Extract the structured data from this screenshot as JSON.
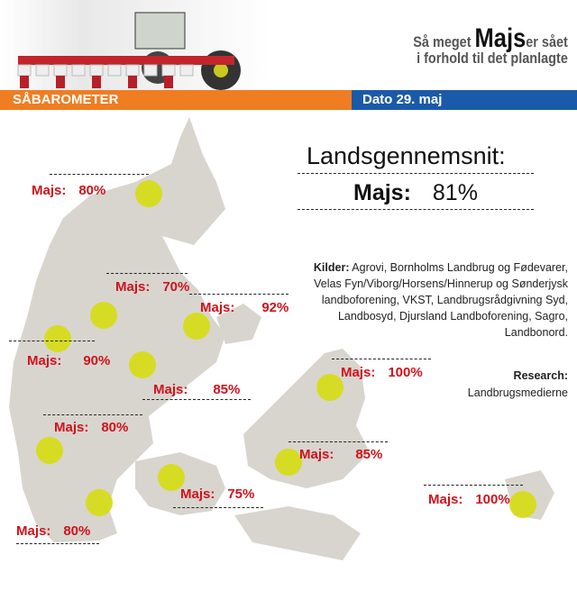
{
  "header": {
    "tagline_pre": "Så meget",
    "tagline_crop": "Majs",
    "tagline_post": "er sået",
    "tagline_line2": "i forhold til det planlagte",
    "section": "SÅBAROMETER",
    "date": "Dato 29. maj"
  },
  "average": {
    "title": "Landsgennemsnit:",
    "crop": "Majs:",
    "value": "81%"
  },
  "sources": {
    "label": "Kilder:",
    "text": "Agrovi, Bornholms Landbrug og Fødevarer, Velas Fyn/Viborg/Horsens/Hinnerup og Sønderjysk landboforening, VKST, Landbrugsrådgivning Syd, Landbosyd, Djursland Landboforening, Sagro, Landbonord."
  },
  "research": {
    "label": "Research:",
    "text": "Landbrugsmedierne"
  },
  "colors": {
    "orange": "#ef7d22",
    "blue": "#1b5aa8",
    "label_red": "#d1121b",
    "marker": "#d6dc1a",
    "land": "#d8d5cf"
  },
  "regions": [
    {
      "crop": "Majs:",
      "value": "80%"
    },
    {
      "crop": "Majs:",
      "value": "70%"
    },
    {
      "crop": "Majs:",
      "value": "92%"
    },
    {
      "crop": "Majs:",
      "value": "90%"
    },
    {
      "crop": "Majs:",
      "value": "85%"
    },
    {
      "crop": "Majs:",
      "value": "100%"
    },
    {
      "crop": "Majs:",
      "value": "80%"
    },
    {
      "crop": "Majs:",
      "value": "85%"
    },
    {
      "crop": "Majs:",
      "value": "75%"
    },
    {
      "crop": "Majs:",
      "value": "100%"
    },
    {
      "crop": "Majs:",
      "value": "80%"
    }
  ]
}
